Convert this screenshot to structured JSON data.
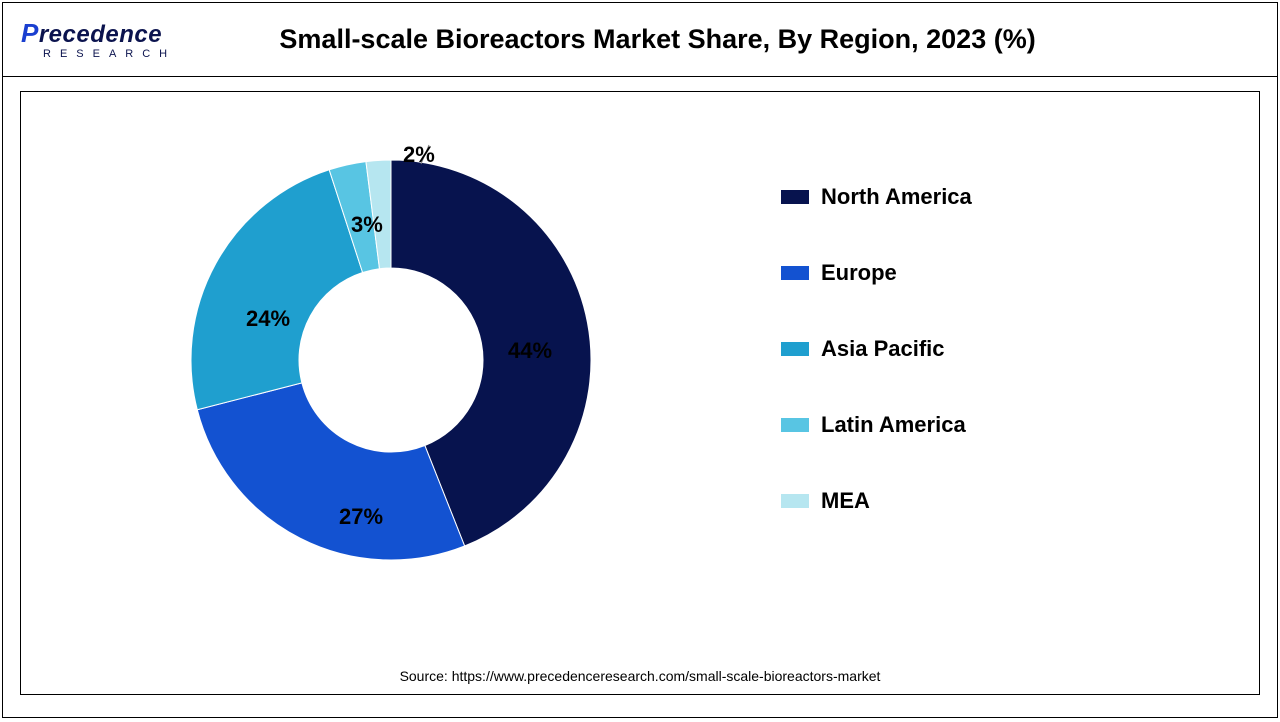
{
  "logo": {
    "top": "Precedence",
    "sub": "RESEARCH"
  },
  "title": "Small-scale Bioreactors Market Share, By Region, 2023 (%)",
  "chart": {
    "type": "donut",
    "inner_radius_ratio": 0.46,
    "background_color": "#ffffff",
    "slices": [
      {
        "label": "North America",
        "value": 44,
        "color": "#07134e",
        "pct_text": "44%"
      },
      {
        "label": "Europe",
        "value": 27,
        "color": "#1352d1",
        "pct_text": "27%"
      },
      {
        "label": "Asia Pacific",
        "value": 24,
        "color": "#1f9fcf",
        "pct_text": "24%"
      },
      {
        "label": "Latin America",
        "value": 3,
        "color": "#58c5e3",
        "pct_text": "3%"
      },
      {
        "label": "MEA",
        "value": 2,
        "color": "#b6e6f0",
        "pct_text": "2%"
      }
    ],
    "label_fontsize": 22,
    "label_fontweight": 700,
    "legend_fontsize": 22,
    "legend_fontweight": 700,
    "start_angle_deg": -90
  },
  "source": "Source: https://www.precedenceresearch.com/small-scale-bioreactors-market"
}
